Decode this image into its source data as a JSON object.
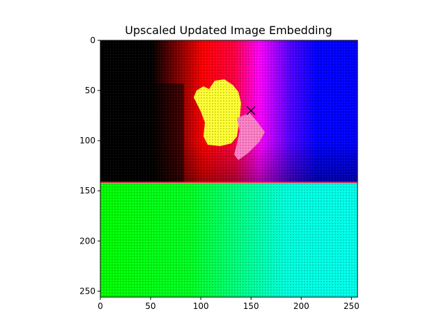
{
  "chart_data": {
    "type": "heatmap",
    "title": "Upscaled Updated Image Embedding",
    "xlim": [
      0,
      256
    ],
    "ylim": [
      256,
      0
    ],
    "x_ticks": [
      0,
      50,
      100,
      150,
      200,
      250
    ],
    "y_ticks": [
      0,
      50,
      100,
      150,
      200,
      250
    ],
    "grid": false,
    "colors": {
      "black": "#000000",
      "red": "#ff0000",
      "magenta": "#ff00ff",
      "blue": "#0000ff",
      "yellow": "#ffff00",
      "green": "#00ff00",
      "cyan": "#00ffee"
    },
    "marker": {
      "shape": "x",
      "x": 150,
      "y": 70
    }
  }
}
